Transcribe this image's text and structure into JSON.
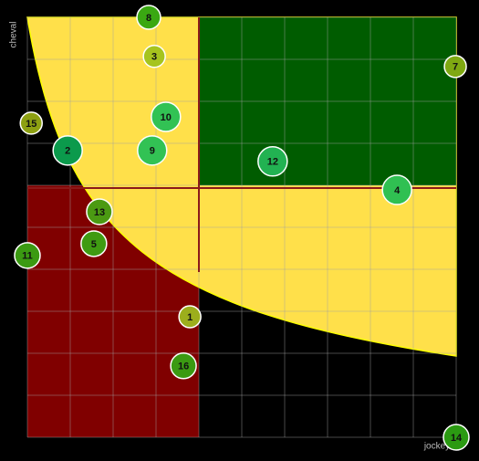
{
  "chart_data": {
    "type": "scatter",
    "x_label": "jockey",
    "y_label": "cheval",
    "xlim": [
      0,
      10
    ],
    "ylim": [
      0,
      10
    ],
    "xticks": [
      0,
      1,
      2,
      3,
      4,
      5,
      6,
      7,
      8,
      9,
      10
    ],
    "yticks": [
      0,
      1,
      2,
      3,
      4,
      5,
      6,
      7,
      8,
      9,
      10
    ],
    "grid": true,
    "labels": [
      "1",
      "2",
      "3",
      "4",
      "5",
      "7",
      "8",
      "9",
      "10",
      "11",
      "12",
      "13",
      "14",
      "15",
      "16"
    ],
    "x": [
      3.79,
      0.94,
      2.96,
      8.62,
      1.55,
      9.98,
      2.83,
      2.91,
      3.23,
      0,
      5.72,
      1.68,
      10,
      0.09,
      3.64
    ],
    "y": [
      2.87,
      6.83,
      9.07,
      5.89,
      4.61,
      8.83,
      10,
      6.83,
      7.63,
      4.33,
      6.57,
      5.37,
      0,
      7.48,
      1.7
    ],
    "sizes": [
      12,
      16,
      12,
      16,
      14,
      12,
      13,
      16,
      16,
      14,
      16,
      14,
      14,
      12,
      14
    ],
    "colors": [
      "#9cae1c",
      "#0b9a4c",
      "#a6c41e",
      "#30c052",
      "#3f9b12",
      "#7fa812",
      "#3aa812",
      "#32c254",
      "#32c254",
      "#3b9a12",
      "#22b252",
      "#4b9a12",
      "#2b9a12",
      "#8da012",
      "#3b9a12"
    ]
  }
}
